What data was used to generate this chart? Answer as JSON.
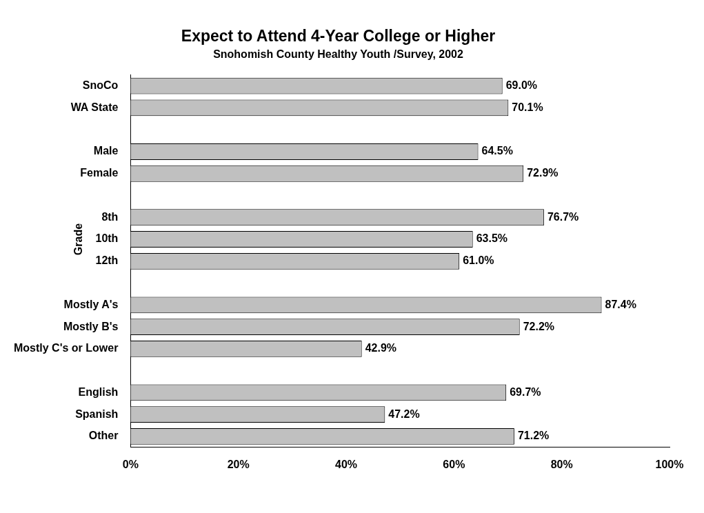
{
  "chart_data": {
    "type": "bar",
    "orientation": "horizontal",
    "title": "Expect to Attend 4-Year College or Higher",
    "subtitle": "Snohomish County Healthy Youth /Survey, 2002",
    "categories": [
      "SnoCo",
      "WA State",
      null,
      "Male",
      "Female",
      null,
      "8th",
      "10th",
      "12th",
      null,
      "Mostly A's",
      "Mostly B's",
      "Mostly C's or Lower",
      null,
      "English",
      "Spanish",
      "Other"
    ],
    "values": [
      69.0,
      70.1,
      null,
      64.5,
      72.9,
      null,
      76.7,
      63.5,
      61.0,
      null,
      87.4,
      72.2,
      42.9,
      null,
      69.7,
      47.2,
      71.2
    ],
    "value_labels": [
      "69.0%",
      "70.1%",
      null,
      "64.5%",
      "72.9%",
      null,
      "76.7%",
      "63.5%",
      "61.0%",
      null,
      "87.4%",
      "72.2%",
      "42.9%",
      null,
      "69.7%",
      "47.2%",
      "71.2%"
    ],
    "color": "#c0c0c0",
    "annotations": [
      "Grade"
    ],
    "xlim": [
      0,
      100
    ],
    "xticks": [
      {
        "value": 0,
        "label": "0%"
      },
      {
        "value": 20,
        "label": "20%"
      },
      {
        "value": 40,
        "label": "40%"
      },
      {
        "value": 60,
        "label": "60%"
      },
      {
        "value": 80,
        "label": "80%"
      },
      {
        "value": 100,
        "label": "100%"
      }
    ],
    "grid": false,
    "legend": false
  }
}
